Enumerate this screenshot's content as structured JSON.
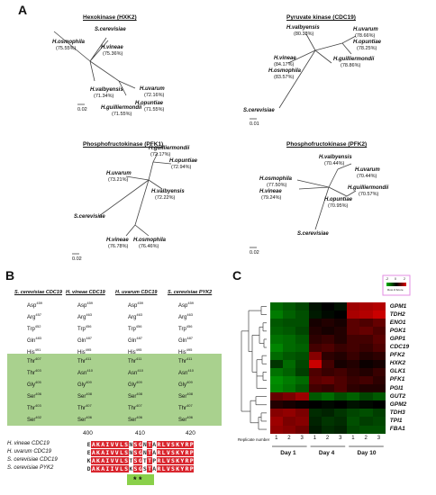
{
  "panels": {
    "a": "A",
    "b": "B",
    "c": "C"
  },
  "trees": {
    "hxk2": {
      "title": "Hexokinase (HXK2)",
      "scale": "0.02",
      "taxa": [
        {
          "name": "S.cerevisiae",
          "pct": ""
        },
        {
          "name": "H.vineae",
          "pct": "(75.36%)"
        },
        {
          "name": "H.osmophila",
          "pct": "(75.55%)"
        },
        {
          "name": "H.valbyensis",
          "pct": "(71.34%)"
        },
        {
          "name": "H.uvarum",
          "pct": "(72.16%)"
        },
        {
          "name": "H.guilliermondii",
          "pct": "(71.55%)"
        },
        {
          "name": "H.opuntiae",
          "pct": "(71.55%)"
        }
      ]
    },
    "cdc19": {
      "title": "Pyruvate kinase (CDC19)",
      "scale": "0.01",
      "taxa": [
        {
          "name": "H.valbyensis",
          "pct": "(80.38%)"
        },
        {
          "name": "H.uvarum",
          "pct": "(78.66%)"
        },
        {
          "name": "H.opuntiae",
          "pct": "(78.25%)"
        },
        {
          "name": "H.vineae",
          "pct": "(84.17%)"
        },
        {
          "name": "H.osmophila",
          "pct": "(83.57%)"
        },
        {
          "name": "H.guilliermondii",
          "pct": "(78.86%)"
        },
        {
          "name": "S.cerevisiae",
          "pct": ""
        }
      ]
    },
    "pfk1": {
      "title": "Phosphofructokinase (PFK1)",
      "scale": "0.02",
      "taxa": [
        {
          "name": "H.guilliermondii",
          "pct": "(72.17%)"
        },
        {
          "name": "H.opuntiae",
          "pct": "(72.94%)"
        },
        {
          "name": "H.uvarum",
          "pct": "(73.21%)"
        },
        {
          "name": "H.valbyensis",
          "pct": "(72.22%)"
        },
        {
          "name": "S.cerevisiae",
          "pct": ""
        },
        {
          "name": "H.vineae",
          "pct": "(76.78%)"
        },
        {
          "name": "H.osmophila",
          "pct": "(76.46%)"
        }
      ]
    },
    "pfk2": {
      "title": "Phosphofructokinase (PFK2)",
      "scale": "0.02",
      "taxa": [
        {
          "name": "H.valbyensis",
          "pct": "(70.44%)"
        },
        {
          "name": "H.uvarum",
          "pct": "(70.44%)"
        },
        {
          "name": "H.osmophila",
          "pct": "(77.50%)"
        },
        {
          "name": "H.vineae",
          "pct": "(79.24%)"
        },
        {
          "name": "H.guilliermondii",
          "pct": "(70.57%)"
        },
        {
          "name": "H.opuntiae",
          "pct": "(70.95%)"
        },
        {
          "name": "S.cerevisiae",
          "pct": ""
        }
      ]
    }
  },
  "residues": {
    "headers": [
      "S. cerevisiae CDC19",
      "H. vineae CDC19",
      "H. uvarum CDC19",
      "S. cerevisiae PYK2"
    ],
    "white_rows": [
      [
        "Asp459",
        "Asp459",
        "Asp459",
        "Asp459"
      ],
      [
        "Arg457",
        "Arg463",
        "Arg463",
        "Arg463"
      ],
      [
        "Trp452",
        "Trp456",
        "Trp456",
        "Trp456"
      ],
      [
        "Gln483",
        "Gln487",
        "Gln487",
        "Gln487"
      ],
      [
        "His491",
        "His495",
        "His495",
        "His495"
      ]
    ],
    "green_rows": [
      [
        "Thr407",
        "Thr411",
        "Thr411",
        "Thr411"
      ],
      [
        "Thr403",
        "Asn410",
        "Asn410",
        "Asn410"
      ],
      [
        "Gly405",
        "Gly409",
        "Gly409",
        "Gly409"
      ],
      [
        "Ser406",
        "Ser408",
        "Ser408",
        "Ser408"
      ],
      [
        "Thr403",
        "Thr407",
        "Thr407",
        "Thr407"
      ],
      [
        "Ser402",
        "Ser406",
        "Ser406",
        "Ser406"
      ]
    ]
  },
  "alignment": {
    "ruler": [
      "400",
      "410",
      "420"
    ],
    "names": [
      "H. vineae CDC19",
      "H. uvarum CDC19",
      "S. cerevisiae CDC19",
      "S. cerevisiae PYK2"
    ],
    "seqs": [
      "EAKAIVVLSNSGNTARLVSKYRP",
      "EAKAIVVLSNSGNTARLVSKYRP",
      "KAKAIVVLSTSGTTPRLVSKYRP",
      "DAKAIIVLSKSGSTARLVSKYRP"
    ],
    "stars": "* *"
  },
  "heatmap": {
    "legend_label": "Row Z-Score",
    "legend_ticks": [
      "-2",
      "0",
      "2"
    ],
    "replicate_label": "Replicate number",
    "replicates": [
      "1",
      "2",
      "3",
      "1",
      "2",
      "3",
      "1",
      "2",
      "3"
    ],
    "days": [
      "Day 1",
      "Day 4",
      "Day 10"
    ],
    "genes": [
      "GPM1",
      "TDH2",
      "ENO1",
      "PGK1",
      "GPP1",
      "CDC19",
      "PFK2",
      "HXK2",
      "GLK1",
      "PFK1",
      "PGI1",
      "GUT2",
      "GPM2",
      "TDH3",
      "TPI1",
      "FBA1"
    ],
    "values": [
      [
        -1.2,
        -1.0,
        -0.8,
        -0.2,
        0.0,
        -0.2,
        1.4,
        1.5,
        1.6
      ],
      [
        -1.4,
        -1.1,
        -0.9,
        -0.3,
        -0.1,
        0.0,
        1.5,
        1.6,
        1.8
      ],
      [
        -1.0,
        -0.9,
        -0.9,
        0.2,
        0.3,
        0.2,
        0.8,
        0.7,
        0.9
      ],
      [
        -1.1,
        -1.0,
        -0.8,
        0.3,
        0.2,
        0.3,
        0.8,
        0.9,
        0.7
      ],
      [
        -1.3,
        -1.2,
        -1.0,
        0.4,
        0.5,
        0.3,
        0.6,
        0.6,
        0.8
      ],
      [
        -1.5,
        -1.2,
        -1.1,
        0.6,
        0.7,
        0.5,
        0.6,
        0.5,
        0.7
      ],
      [
        -1.2,
        -1.0,
        -0.9,
        1.2,
        0.4,
        0.3,
        0.5,
        0.3,
        0.4
      ],
      [
        -0.6,
        -1.2,
        -0.8,
        1.8,
        0.6,
        0.2,
        0.3,
        0.1,
        0.2
      ],
      [
        -1.3,
        -1.1,
        -0.7,
        0.7,
        0.5,
        0.6,
        0.4,
        0.3,
        0.5
      ],
      [
        -1.6,
        -1.4,
        -1.2,
        0.8,
        0.9,
        0.7,
        0.5,
        0.6,
        0.4
      ],
      [
        -1.5,
        -1.3,
        -1.0,
        0.6,
        0.5,
        0.7,
        0.4,
        0.3,
        0.3
      ],
      [
        0.9,
        1.1,
        1.4,
        -1.0,
        -1.2,
        -0.9,
        -1.1,
        -0.8,
        -1.0
      ],
      [
        0.3,
        0.2,
        0.1,
        0.0,
        -0.1,
        0.0,
        -0.2,
        -0.1,
        0.0
      ],
      [
        1.2,
        1.3,
        1.1,
        -0.5,
        -0.4,
        -0.6,
        -0.8,
        -0.9,
        -0.7
      ],
      [
        1.4,
        1.1,
        1.2,
        -0.4,
        -0.6,
        -0.5,
        -0.9,
        -0.7,
        -0.8
      ],
      [
        1.3,
        1.2,
        1.0,
        -0.3,
        -0.5,
        -0.4,
        -0.8,
        -0.9,
        -0.9
      ]
    ],
    "colors": {
      "low": "#00b000",
      "mid": "#000000",
      "high": "#e00000"
    }
  }
}
